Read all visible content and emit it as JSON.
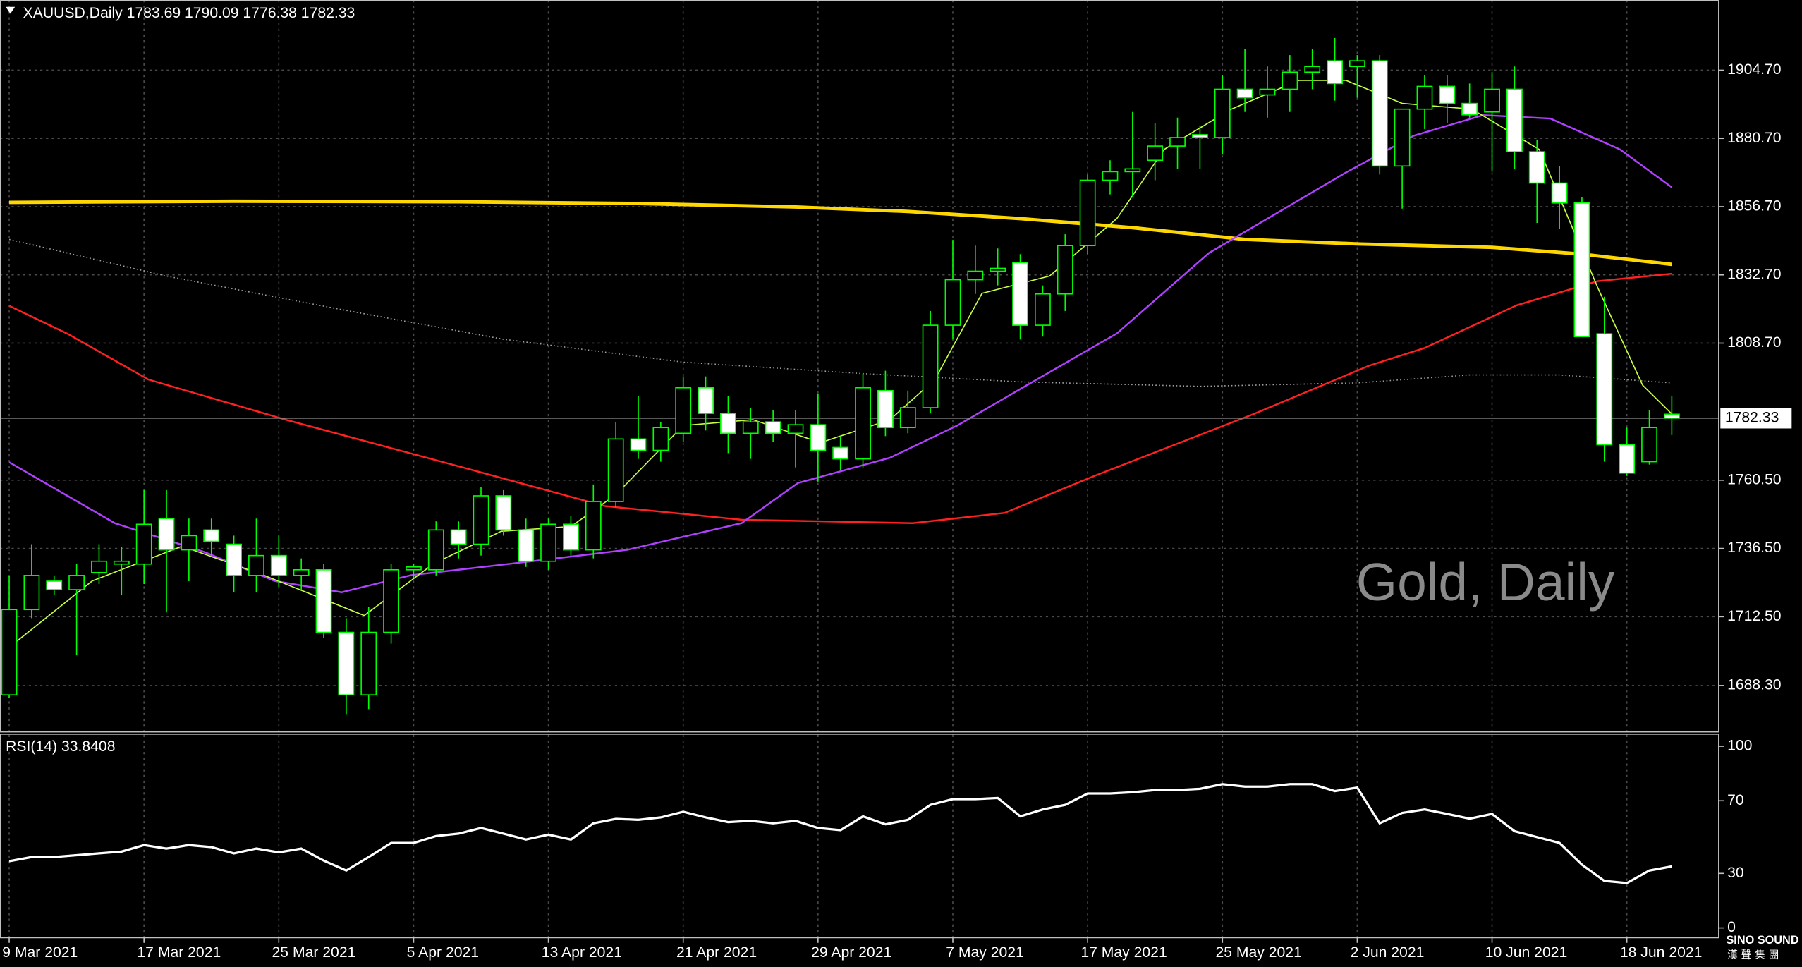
{
  "chart_data": [
    {
      "type": "candlestick",
      "title": "XAUUSD,Daily 1783.69 1790.09 1776.38 1782.33",
      "watermark": "Gold, Daily",
      "categories": [
        "9 Mar 2021",
        null,
        null,
        null,
        null,
        null,
        "17 Mar 2021",
        null,
        null,
        null,
        null,
        null,
        "25 Mar 2021",
        null,
        null,
        null,
        null,
        null,
        "5 Apr 2021",
        null,
        null,
        null,
        null,
        null,
        "13 Apr 2021",
        null,
        null,
        null,
        null,
        null,
        "21 Apr 2021",
        null,
        null,
        null,
        null,
        null,
        "29 Apr 2021",
        null,
        null,
        null,
        null,
        null,
        "7 May 2021",
        null,
        null,
        null,
        null,
        null,
        "17 May 2021",
        null,
        null,
        null,
        null,
        null,
        "25 May 2021",
        null,
        null,
        null,
        null,
        null,
        "2 Jun 2021",
        null,
        null,
        null,
        null,
        null,
        "10 Jun 2021",
        null,
        null,
        null,
        null,
        null,
        "18 Jun 2021",
        null,
        null
      ],
      "open": [
        1685,
        1715,
        1725,
        1722,
        1728,
        1731,
        1731,
        1747,
        1736,
        1743,
        1738,
        1727,
        1734,
        1727,
        1729,
        1707,
        1685,
        1707,
        1729,
        1729,
        1743,
        1738,
        1755,
        1743,
        1732,
        1745,
        1736,
        1753,
        1775,
        1771,
        1777,
        1793,
        1784,
        1777,
        1781,
        1777,
        1780,
        1772,
        1768,
        1792,
        1779,
        1786,
        1815,
        1831,
        1834,
        1837,
        1815,
        1826,
        1843,
        1866,
        1869,
        1873,
        1878,
        1882,
        1881,
        1898,
        1896,
        1898,
        1904,
        1908,
        1906,
        1908,
        1871,
        1891,
        1899,
        1893,
        1890,
        1898,
        1876,
        1865,
        1858,
        1812,
        1773,
        1767,
        1783.69
      ],
      "high": [
        1727,
        1738,
        1727,
        1731,
        1738,
        1737,
        1757,
        1757,
        1747,
        1747,
        1741,
        1747,
        1741,
        1733,
        1731,
        1712,
        1716,
        1731,
        1731,
        1746,
        1746,
        1758,
        1757,
        1747,
        1747,
        1748,
        1759,
        1781,
        1790,
        1781,
        1797,
        1797,
        1790,
        1786,
        1785,
        1785,
        1791,
        1776,
        1798,
        1799,
        1792,
        1820,
        1845,
        1843,
        1842,
        1840,
        1829,
        1847,
        1868,
        1873,
        1890,
        1886,
        1888,
        1885,
        1903,
        1912,
        1906,
        1910,
        1912,
        1916,
        1910,
        1910,
        1891,
        1903,
        1903,
        1900,
        1904,
        1906,
        1880,
        1871,
        1860,
        1825,
        1779,
        1785,
        1790.09
      ],
      "low": [
        1684,
        1712,
        1720,
        1699,
        1724,
        1720,
        1724,
        1714,
        1725,
        1734,
        1721,
        1721,
        1723,
        1722,
        1705,
        1678,
        1680,
        1703,
        1726,
        1727,
        1733,
        1734,
        1741,
        1730,
        1729,
        1734,
        1733,
        1751,
        1768,
        1767,
        1774,
        1778,
        1770,
        1768,
        1774,
        1765,
        1760,
        1764,
        1765,
        1776,
        1777,
        1784,
        1810,
        1826,
        1829,
        1810,
        1811,
        1820,
        1840,
        1861,
        1860,
        1866,
        1870,
        1870,
        1875,
        1890,
        1888,
        1890,
        1898,
        1894,
        1895,
        1868,
        1856,
        1884,
        1886,
        1888,
        1869,
        1870,
        1851,
        1849,
        1811,
        1767,
        1762,
        1766,
        1776.38
      ],
      "close": [
        1715,
        1727,
        1722,
        1727,
        1732,
        1732,
        1745,
        1736,
        1741,
        1739,
        1727,
        1734,
        1727,
        1729,
        1707,
        1685,
        1707,
        1729,
        1730,
        1743,
        1738,
        1755,
        1743,
        1732,
        1745,
        1736,
        1753,
        1775,
        1771,
        1779,
        1793,
        1784,
        1777,
        1781,
        1777,
        1780,
        1771,
        1768,
        1793,
        1779,
        1786,
        1815,
        1831,
        1834,
        1835,
        1815,
        1826,
        1843,
        1866,
        1869,
        1870,
        1878,
        1881,
        1881,
        1898,
        1895,
        1898,
        1904,
        1906,
        1900,
        1908,
        1871,
        1891,
        1899,
        1893,
        1889,
        1898,
        1876,
        1865,
        1858,
        1811,
        1773,
        1763,
        1779,
        1782.33
      ],
      "bull_color": "#000000",
      "bear_color": "#ffffff",
      "wick_color": "#00ff00",
      "ylim": [
        1672.2,
        1929.37
      ],
      "yticks": [
        {
          "value": 1688.3,
          "label": "1688.30"
        },
        {
          "value": 1712.5,
          "label": "1712.50"
        },
        {
          "value": 1736.5,
          "label": "1736.50"
        },
        {
          "value": 1760.5,
          "label": "1760.50"
        },
        {
          "value": 1808.7,
          "label": "1808.70"
        },
        {
          "value": 1832.7,
          "label": "1832.70"
        },
        {
          "value": 1856.7,
          "label": "1856.70"
        },
        {
          "value": 1880.7,
          "label": "1880.70"
        },
        {
          "value": 1904.7,
          "label": "1904.70"
        }
      ],
      "grid": true,
      "last_price": 1782.33,
      "overlays": [
        {
          "color": "#ffd700",
          "width": 3,
          "x": [
            0,
            10,
            20,
            28,
            35,
            40,
            45,
            50,
            55,
            60,
            66,
            70,
            74
          ],
          "values": [
            1858.2,
            1858.6,
            1858.4,
            1857.8,
            1856.6,
            1855,
            1852.5,
            1849.3,
            1845.2,
            1843.6,
            1842.4,
            1840,
            1836.4
          ]
        },
        {
          "color": "#a0a0a0",
          "width": 1,
          "dashed": true,
          "x": [
            0,
            7,
            15,
            22,
            30,
            38,
            45,
            53,
            60,
            65,
            69,
            74
          ],
          "values": [
            1845.2,
            1832.3,
            1820.2,
            1810.1,
            1802,
            1798,
            1795.1,
            1793.5,
            1794.7,
            1797.5,
            1797.5,
            1794.7
          ]
        },
        {
          "color": "#ff2020",
          "width": 1.5,
          "x": [
            0,
            2.6,
            6.2,
            12.3,
            19.9,
            26.5,
            32.6,
            40.2,
            44.3,
            48.3,
            55.4,
            60.5,
            63,
            67.1,
            70.7,
            74
          ],
          "values": [
            1821.8,
            1812,
            1795.9,
            1781.8,
            1765.6,
            1751.4,
            1746.6,
            1745.4,
            1749,
            1762,
            1783.8,
            1800.7,
            1807,
            1822,
            1830.5,
            1833.1
          ]
        },
        {
          "color": "#b040ff",
          "width": 1.5,
          "x": [
            0,
            4.7,
            8.7,
            11.8,
            14.8,
            17.9,
            22.4,
            27.5,
            32.6,
            35.1,
            39.2,
            42.2,
            45.3,
            49.3,
            53.4,
            59.5,
            62.5,
            65.6,
            68.6,
            71.7,
            74
          ],
          "values": [
            1766.8,
            1745.4,
            1735.2,
            1725.1,
            1721.1,
            1727.1,
            1731.2,
            1736,
            1745.4,
            1759.5,
            1768.4,
            1779.7,
            1793.9,
            1812.1,
            1840.4,
            1868.7,
            1881.6,
            1888.9,
            1887.7,
            1876.8,
            1863.5
          ]
        },
        {
          "color": "#c8ff40",
          "width": 1,
          "x": [
            0,
            3.7,
            7.7,
            11.3,
            15.8,
            18.9,
            21.9,
            25,
            27,
            30,
            33.1,
            36.1,
            39.2,
            41.2,
            43.3,
            46.3,
            49.3,
            51.4,
            54.4,
            57.4,
            59.5,
            62,
            65.1,
            68.1,
            70.7,
            72.7,
            74
          ],
          "values": [
            1701.7,
            1725.1,
            1737.3,
            1727.2,
            1712.9,
            1731.2,
            1742.5,
            1744.2,
            1755.4,
            1779.7,
            1781.8,
            1773.7,
            1781.8,
            1795.9,
            1826.2,
            1832.3,
            1852.5,
            1876.8,
            1891,
            1901.1,
            1901.1,
            1893,
            1891,
            1876.8,
            1828.3,
            1793.9,
            1783.8
          ]
        }
      ]
    },
    {
      "type": "line",
      "title": "RSI(14) 33.8408",
      "values": [
        36.7,
        39,
        39,
        40,
        41,
        42,
        45.6,
        43.7,
        45.6,
        44.5,
        41,
        43.7,
        41.6,
        43.7,
        37,
        31.6,
        39,
        46.8,
        46.8,
        50.6,
        51.9,
        55,
        51.9,
        48.7,
        51.3,
        48.7,
        57.6,
        60,
        59.5,
        60.8,
        63.9,
        60.8,
        58.2,
        58.9,
        57.6,
        58.9,
        55,
        53.8,
        61.4,
        57,
        59.5,
        67.7,
        70.9,
        70.9,
        71.5,
        61.4,
        65.2,
        67.7,
        74,
        74,
        74.7,
        75.9,
        75.9,
        76.6,
        79.1,
        77.8,
        77.8,
        79.1,
        79.1,
        75.3,
        77.2,
        57.6,
        63.3,
        65.2,
        62.7,
        60.1,
        62.7,
        53.2,
        50,
        46.8,
        34.8,
        25.9,
        24.7,
        31.6,
        33.84
      ],
      "color": "#ffffff",
      "ylim": [
        0,
        100
      ],
      "yticks": [
        0,
        30,
        70,
        100
      ]
    }
  ],
  "logo": {
    "name": "SINO SOUND",
    "subtitle": "漢聲集團"
  }
}
